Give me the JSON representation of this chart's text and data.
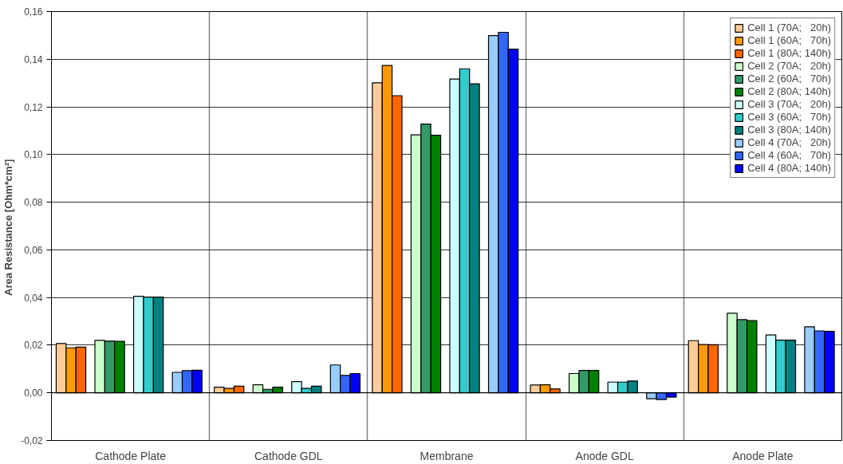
{
  "chart_data": {
    "type": "bar",
    "ylabel": "Area Resistance  [Ohm*cm²]",
    "categories": [
      "Cathode Plate",
      "Cathode GDL",
      "Membrane",
      "Anode GDL",
      "Anode Plate"
    ],
    "series": [
      {
        "name": "Cell 1 (70A;   20h)",
        "color": "#ffcc99",
        "values": [
          0.0207,
          0.0024,
          0.1301,
          0.0033,
          0.0219
        ]
      },
      {
        "name": "Cell 1 (60A;   70h)",
        "color": "#ff9900",
        "values": [
          0.0189,
          0.0019,
          0.1374,
          0.0034,
          0.0203
        ]
      },
      {
        "name": "Cell 1 (80A; 140h)",
        "color": "#ff6600",
        "values": [
          0.0192,
          0.0028,
          0.1247,
          0.0016,
          0.0202
        ]
      },
      {
        "name": "Cell 2 (70A;   20h)",
        "color": "#ccffcc",
        "values": [
          0.022,
          0.0034,
          0.1083,
          0.0081,
          0.0334
        ]
      },
      {
        "name": "Cell 2 (60A;   70h)",
        "color": "#339966",
        "values": [
          0.0217,
          0.0015,
          0.1128,
          0.0094,
          0.0307
        ]
      },
      {
        "name": "Cell 2 (80A; 140h)",
        "color": "#008000",
        "values": [
          0.0216,
          0.0024,
          0.1081,
          0.0094,
          0.0303
        ]
      },
      {
        "name": "Cell 3 (70A;   20h)",
        "color": "#ccffff",
        "values": [
          0.0405,
          0.0047,
          0.1317,
          0.0045,
          0.0243
        ]
      },
      {
        "name": "Cell 3 (60A;   70h)",
        "color": "#33cccc",
        "values": [
          0.0402,
          0.0019,
          0.136,
          0.0045,
          0.0221
        ]
      },
      {
        "name": "Cell 3 (80A; 140h)",
        "color": "#008080",
        "values": [
          0.0402,
          0.0028,
          0.1297,
          0.005,
          0.0221
        ]
      },
      {
        "name": "Cell 4 (70A;   20h)",
        "color": "#99ccff",
        "values": [
          0.0086,
          0.0117,
          0.1499,
          -0.0025,
          0.0277
        ]
      },
      {
        "name": "Cell 4 (60A;   70h)",
        "color": "#3366ff",
        "values": [
          0.0093,
          0.0073,
          0.1513,
          -0.0028,
          0.026
        ]
      },
      {
        "name": "Cell 4 (80A; 140h)",
        "color": "#0000ff",
        "values": [
          0.0095,
          0.0081,
          0.1442,
          -0.0018,
          0.0258
        ]
      }
    ],
    "ylim": [
      -0.02,
      0.16
    ],
    "yticks": [
      {
        "value": -0.02,
        "label": "-0,02"
      },
      {
        "value": 0,
        "label": "0,00"
      },
      {
        "value": 0.02,
        "label": "0,02"
      },
      {
        "value": 0.04,
        "label": "0,04"
      },
      {
        "value": 0.06,
        "label": "0,06"
      },
      {
        "value": 0.08,
        "label": "0,08"
      },
      {
        "value": 0.1,
        "label": "0,10"
      },
      {
        "value": 0.12,
        "label": "0,12"
      },
      {
        "value": 0.14,
        "label": "0,14"
      },
      {
        "value": 0.16,
        "label": "0,16"
      }
    ],
    "grid": true,
    "legend": "top right"
  }
}
